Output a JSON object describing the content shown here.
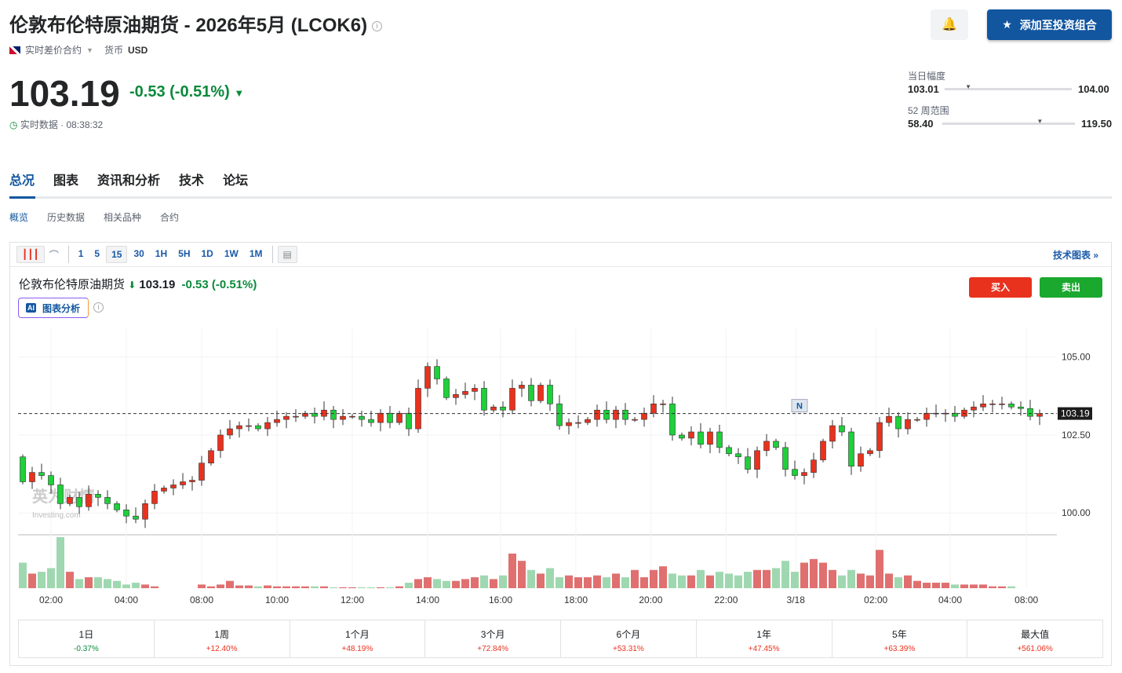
{
  "header": {
    "title": "伦敦布伦特原油期货 - 2026年5月 (LCOK6)",
    "contract_type": "实时差价合约",
    "currency_label": "货币",
    "currency": "USD",
    "add_portfolio": "添加至投资组合"
  },
  "quote": {
    "price": "103.19",
    "change": "-0.53 (-0.51%)",
    "time": "实时数据 · 08:38:32",
    "down_color": "#0a8a3a",
    "up_color": "#e8321e"
  },
  "ranges": {
    "day_label": "当日幅度",
    "day_low": "103.01",
    "day_high": "104.00",
    "day_position": 0.18,
    "week52_label": "52 周范围",
    "week52_low": "58.40",
    "week52_high": "119.50",
    "week52_position": 0.73
  },
  "tabs": [
    "总况",
    "图表",
    "资讯和分析",
    "技术",
    "论坛"
  ],
  "subtabs": [
    "概览",
    "历史数据",
    "相关品种",
    "合约"
  ],
  "toolbar": {
    "intervals": [
      "1",
      "5",
      "15",
      "30",
      "1H",
      "5H",
      "1D",
      "1W",
      "1M"
    ],
    "selected": "15",
    "tech_chart": "技术图表 »"
  },
  "chart_header": {
    "name": "伦敦布伦特原油期货",
    "price": "103.19",
    "change": "-0.53",
    "pct": "(-0.51%)",
    "ai_label": "图表分析",
    "buy": "买入",
    "sell": "卖出",
    "watermark": "英为财情 Investing.com",
    "news_marker": "N"
  },
  "chart_data": {
    "type": "candlestick",
    "interval": "15",
    "y_ticks": [
      "105.00",
      "102.50",
      "100.00"
    ],
    "ylim": [
      99.3,
      105.9
    ],
    "last_price": 103.19,
    "x_ticks": [
      "02:00",
      "04:00",
      "08:00",
      "10:00",
      "12:00",
      "14:00",
      "16:00",
      "18:00",
      "20:00",
      "22:00",
      "3/18",
      "02:00",
      "04:00",
      "08:00"
    ],
    "first_open": 101.8,
    "closes": [
      101.0,
      101.3,
      101.2,
      100.9,
      100.3,
      100.5,
      100.2,
      100.6,
      100.5,
      100.3,
      100.1,
      99.9,
      99.8,
      100.3,
      100.7,
      100.8,
      100.9,
      101.0,
      101.05,
      101.6,
      102.0,
      102.5,
      102.7,
      102.8,
      102.8,
      102.7,
      102.9,
      103.0,
      103.1,
      103.1,
      103.2,
      103.1,
      103.3,
      103.0,
      103.1,
      103.1,
      103.0,
      102.9,
      103.2,
      102.9,
      103.2,
      102.7,
      104.0,
      104.7,
      104.3,
      103.7,
      103.8,
      103.9,
      104.0,
      103.3,
      103.4,
      103.3,
      104.0,
      104.1,
      103.6,
      104.1,
      103.5,
      102.8,
      102.9,
      102.9,
      103.0,
      103.3,
      103.0,
      103.3,
      103.0,
      103.0,
      103.2,
      103.5,
      103.5,
      102.5,
      102.4,
      102.6,
      102.2,
      102.6,
      102.1,
      101.9,
      101.8,
      101.4,
      102.0,
      102.3,
      102.1,
      101.4,
      101.2,
      101.3,
      101.7,
      102.3,
      102.8,
      102.6,
      101.5,
      101.9,
      102.0,
      102.9,
      103.1,
      102.7,
      103.0,
      103.0,
      103.2,
      103.2,
      103.2,
      103.1,
      103.3,
      103.4,
      103.5,
      103.5,
      103.5,
      103.4,
      103.35,
      103.1,
      103.19
    ],
    "volumes": [
      28,
      16,
      18,
      22,
      56,
      18,
      10,
      12,
      12,
      10,
      8,
      4,
      6,
      4,
      2,
      0,
      0,
      0,
      0,
      4,
      2,
      4,
      8,
      3,
      3,
      2,
      3,
      2,
      2,
      2,
      2,
      2,
      2,
      1,
      1,
      1,
      1,
      1,
      1,
      1,
      2,
      6,
      10,
      12,
      10,
      8,
      8,
      10,
      12,
      14,
      10,
      14,
      38,
      30,
      20,
      16,
      22,
      12,
      14,
      12,
      12,
      14,
      12,
      16,
      12,
      20,
      12,
      20,
      24,
      16,
      14,
      14,
      20,
      14,
      18,
      16,
      14,
      18,
      20,
      20,
      22,
      30,
      18,
      28,
      32,
      28,
      20,
      14,
      20,
      16,
      14,
      42,
      16,
      12,
      14,
      8,
      6,
      6,
      6,
      4,
      4,
      4,
      4,
      2,
      2,
      2,
      0,
      0,
      0
    ]
  },
  "performance": [
    {
      "label": "1日",
      "value": "-0.37%"
    },
    {
      "label": "1周",
      "value": "+12.40%"
    },
    {
      "label": "1个月",
      "value": "+48.19%"
    },
    {
      "label": "3个月",
      "value": "+72.84%"
    },
    {
      "label": "6个月",
      "value": "+53.31%"
    },
    {
      "label": "1年",
      "value": "+47.45%"
    },
    {
      "label": "5年",
      "value": "+63.39%"
    },
    {
      "label": "最大值",
      "value": "+561.06%"
    }
  ]
}
